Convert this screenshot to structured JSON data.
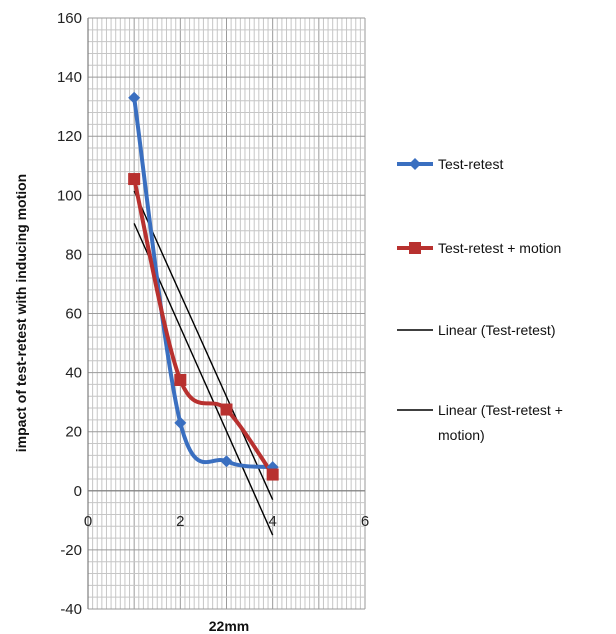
{
  "chart_data": {
    "type": "line",
    "title": "",
    "xlabel": "22mm",
    "ylabel": "impact of test-retest with inducing motion",
    "xlim": [
      0,
      6
    ],
    "ylim": [
      -40,
      160
    ],
    "x_ticks": [
      "0",
      "2",
      "4",
      "6"
    ],
    "y_ticks": [
      "-40",
      "-20",
      "0",
      "20",
      "40",
      "60",
      "80",
      "100",
      "120",
      "140",
      "160"
    ],
    "grid": true,
    "legend_position": "right",
    "series": [
      {
        "name": "Test-retest",
        "color": "#3a6fc0",
        "marker": "diamond",
        "smooth": true,
        "x": [
          1,
          2,
          3,
          4
        ],
        "y": [
          133,
          23,
          10,
          8
        ]
      },
      {
        "name": "Test-retest + motion",
        "color": "#b8312f",
        "marker": "square",
        "smooth": true,
        "x": [
          1,
          2,
          3,
          4
        ],
        "y": [
          105.5,
          37.5,
          27.5,
          5.5
        ]
      }
    ],
    "trendlines": [
      {
        "name": "Linear (Test-retest)",
        "color": "#000000",
        "x": [
          1,
          4
        ],
        "y": [
          90.5,
          -15
        ]
      },
      {
        "name": "Linear (Test-retest + motion)",
        "color": "#000000",
        "x": [
          1,
          4
        ],
        "y": [
          101.5,
          -3
        ]
      }
    ],
    "legend": [
      {
        "lines": [
          "Test-retest"
        ],
        "kind": "series",
        "color": "#3a6fc0",
        "marker": "diamond"
      },
      {
        "lines": [
          "Test-retest + motion"
        ],
        "kind": "series",
        "color": "#b8312f",
        "marker": "square"
      },
      {
        "lines": [
          "Linear (Test-retest)"
        ],
        "kind": "trend",
        "color": "#000000"
      },
      {
        "lines": [
          "Linear (Test-retest +",
          "motion)"
        ],
        "kind": "trend",
        "color": "#000000"
      }
    ]
  }
}
